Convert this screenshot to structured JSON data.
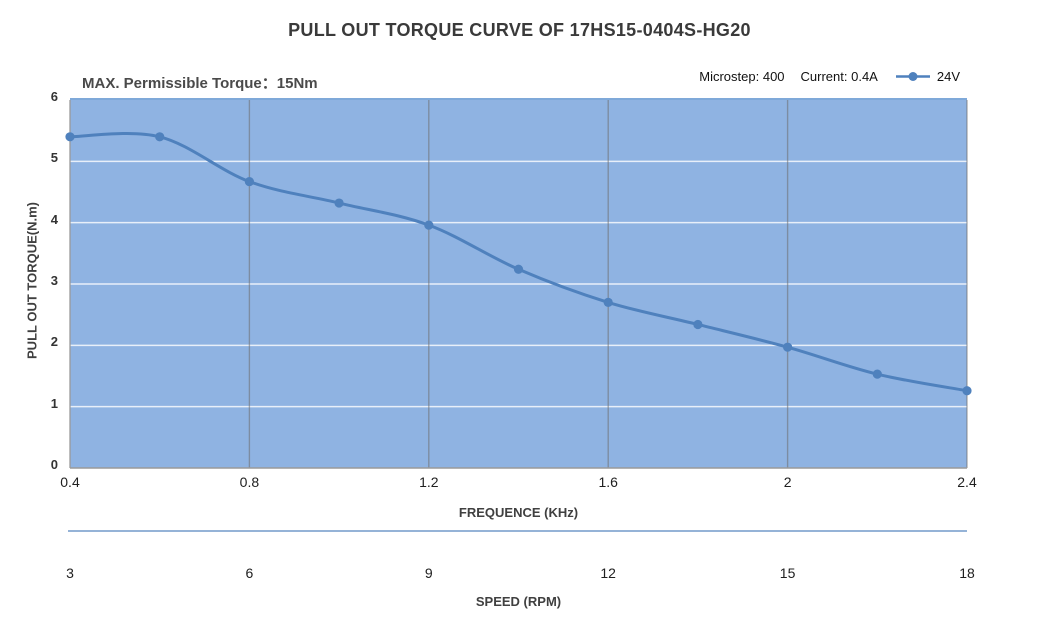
{
  "title": "PULL OUT TORQUE CURVE OF 17HS15-0404S-HG20",
  "subtitle": "MAX. Permissible Torque：15Nm",
  "header_info": {
    "microstep": "Microstep: 400",
    "current": "Current: 0.4A"
  },
  "legend": {
    "label": "24V"
  },
  "chart_data": {
    "type": "line",
    "title": "PULL OUT TORQUE CURVE OF 17HS15-0404S-HG20",
    "xlabel": "FREQUENCE (KHz)",
    "ylabel": "PULL OUT TORQUE(N.m)",
    "x2label": "SPEED (RPM)",
    "x": [
      0.4,
      0.6,
      0.8,
      1.0,
      1.2,
      1.4,
      1.6,
      1.8,
      2.0,
      2.2,
      2.4
    ],
    "series": [
      {
        "name": "24V",
        "values": [
          5.4,
          5.4,
          4.67,
          4.32,
          3.96,
          3.24,
          2.7,
          2.34,
          1.97,
          1.53,
          1.26
        ]
      }
    ],
    "xlim": [
      0.4,
      2.4
    ],
    "ylim": [
      0,
      6
    ],
    "x_tick_values": [
      0.4,
      0.8,
      1.2,
      1.6,
      2.0,
      2.4
    ],
    "x_tick_labels": [
      "0.4",
      "0.8",
      "1.2",
      "1.6",
      "2",
      "2.4"
    ],
    "y_tick_values": [
      0,
      1,
      2,
      3,
      4,
      5,
      6
    ],
    "x2_tick_labels": [
      "3",
      "6",
      "9",
      "12",
      "15",
      "18"
    ],
    "grid": true,
    "legend_position": "top-right",
    "colors": {
      "area_fill": "#8FB3E2",
      "line": "#4F81BD",
      "marker": "#4F81BD",
      "v_grid": "#6E6E6E",
      "h_grid": "#FFFFFF",
      "axis_line": "#9A9A9A",
      "speed_axis": "#95B3D7",
      "plot_top_border": "#7FA9D9"
    }
  }
}
